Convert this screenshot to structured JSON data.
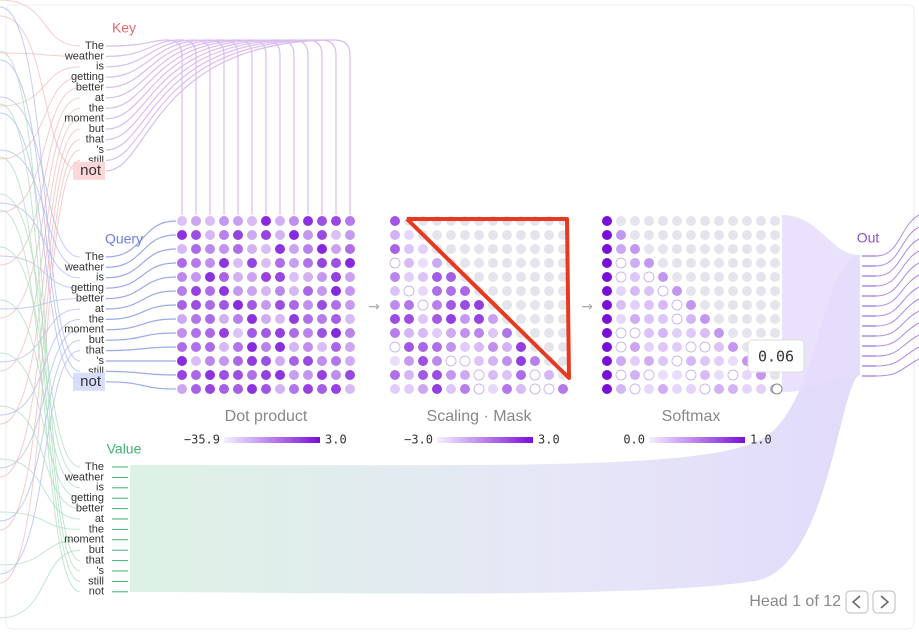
{
  "labels": {
    "key": "Key",
    "query": "Query",
    "value": "Value",
    "out": "Out"
  },
  "tokens": [
    "The",
    "weather",
    "is",
    "getting",
    "better",
    "at",
    "the",
    "moment",
    "but",
    "that",
    "'s",
    "still",
    "not"
  ],
  "matrices": [
    {
      "title": "Dot product",
      "min": "−35.9",
      "max": "3.0"
    },
    {
      "title": "Scaling · Mask",
      "min": "−3.0",
      "max": "3.0"
    },
    {
      "title": "Softmax",
      "min": "0.0",
      "max": "1.0"
    }
  ],
  "tooltip": "0.06",
  "pager": "Head 1 of 12"
}
